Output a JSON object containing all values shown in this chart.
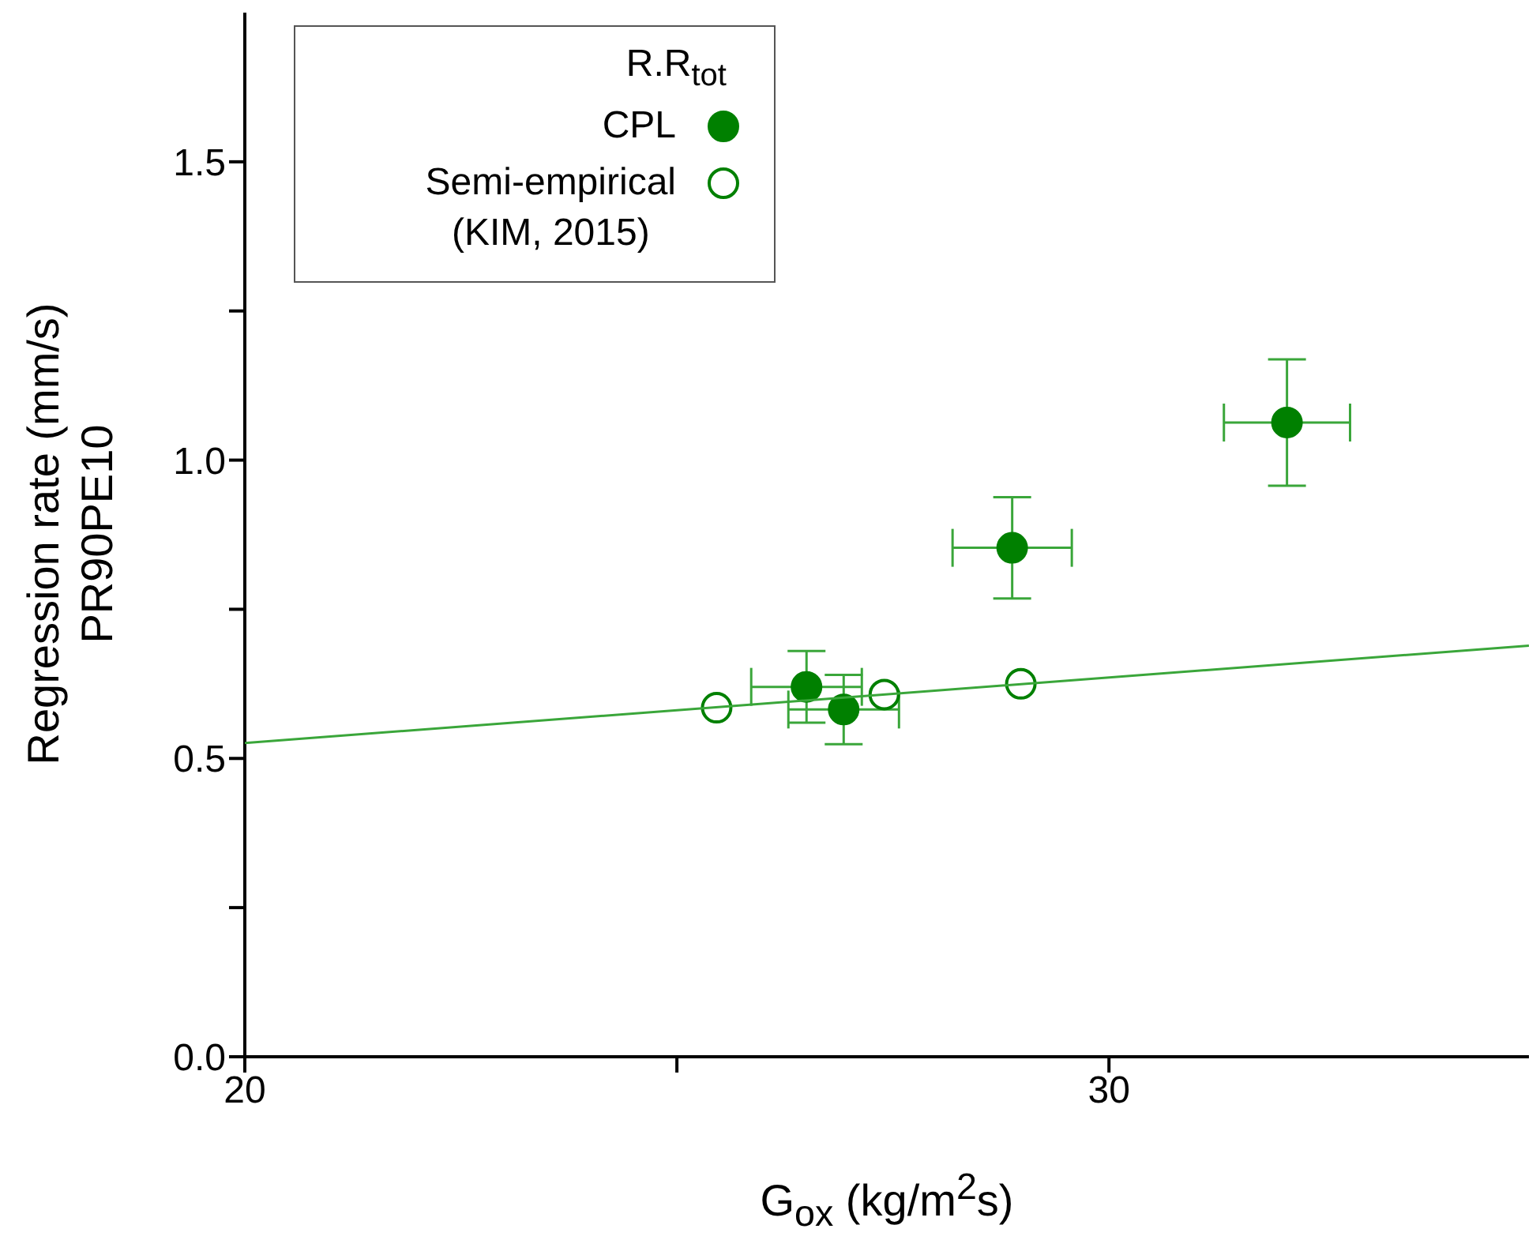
{
  "chart_data": {
    "type": "scatter",
    "xlabel": "G$_{ox}$ (kg/m$^{2}$s)",
    "ylabel": "Regression rate (mm/s)\nPR90PE10",
    "legend_title": "R.R$_{tot}$",
    "legend": "top left",
    "marker": "circle",
    "xlim": [
      20,
      34.86
    ],
    "xticks": [
      20,
      {
        "value": 25,
        "label": null
      },
      30
    ],
    "ylim": [
      0,
      1.75
    ],
    "yticks": [
      {
        "value": 0,
        "label": "0.0"
      },
      {
        "value": 0.25,
        "label": null
      },
      0.5,
      {
        "value": 0.75,
        "label": null
      },
      {
        "value": 1,
        "label": "1.0"
      },
      {
        "value": 1.25,
        "label": null
      },
      1.5
    ],
    "series": [
      {
        "name": "CPL",
        "color": "#008000",
        "x": [
          26.5,
          26.93,
          28.88,
          32.06
        ],
        "values": [
          0.62,
          0.582,
          0.853,
          1.063
        ],
        "errors": [
          0.06,
          0.058,
          0.085,
          0.106
        ],
        "xerrors": [
          0.64,
          0.64,
          0.69,
          0.73
        ]
      },
      {
        "name": "Semi-empirical\n(KIM, 2015)",
        "color": "#008000",
        "colors": [
          "#ffffff",
          "#ffffff",
          "#ffffff"
        ],
        "x": [
          25.46,
          27.4,
          28.98
        ],
        "values": [
          0.585,
          0.607,
          0.625
        ]
      },
      {
        "type": "line",
        "color": "#3aa63a",
        "marker": "none",
        "x": [
          20,
          34.86
        ],
        "values": [
          0.526,
          0.689
        ]
      }
    ]
  }
}
